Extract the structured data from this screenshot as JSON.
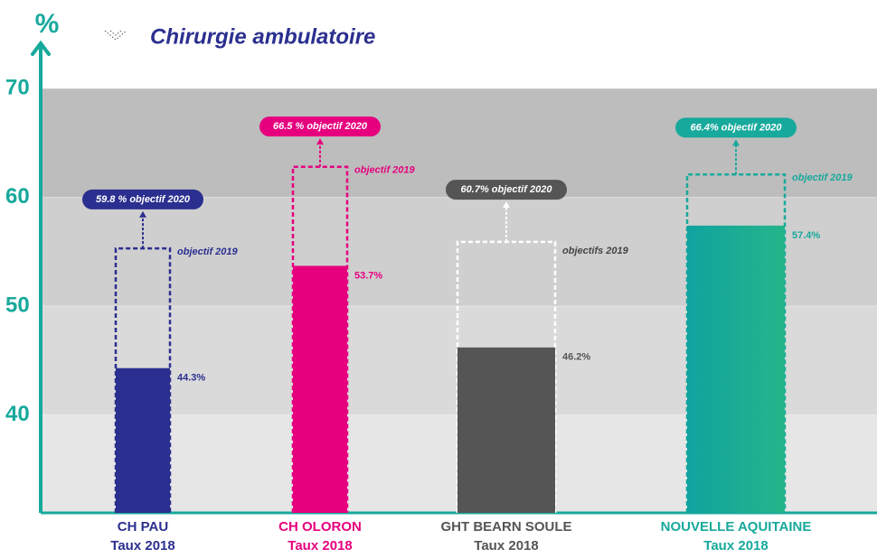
{
  "chart_data": {
    "type": "bar",
    "title": "Chirurgie ambulatoire",
    "y_label": "%",
    "categories": [
      [
        "CH PAU",
        "Taux  2018"
      ],
      [
        "CH OLORON",
        "Taux  2018"
      ],
      [
        "GHT BEARN SOULE",
        "Taux 2018"
      ],
      [
        "NOUVELLE AQUITAINE",
        "Taux 2018"
      ]
    ],
    "colors": [
      "#2b2f8f",
      "#e6007e",
      "#555555",
      "#17a99c"
    ],
    "series": [
      {
        "name": "Taux 2018",
        "values": [
          44.3,
          53.7,
          46.2,
          57.4
        ],
        "value_labels": [
          "44.3%",
          "53.7%",
          "46.2%",
          "57.4%"
        ]
      },
      {
        "name": "objectif 2019",
        "values": [
          55.3,
          62.8,
          55.9,
          62.1
        ],
        "value_labels": [
          "objectif 2019",
          "objectif 2019",
          "objectifs 2019",
          "objectif 2019"
        ]
      },
      {
        "name": "objectif 2020",
        "values": [
          59.8,
          66.5,
          60.7,
          66.4
        ],
        "value_labels": [
          "59.8 % objectif 2020",
          "66.5 % objectif 2020",
          "60.7% objectif 2020",
          "66.4% objectif 2020"
        ]
      }
    ],
    "ylim": [
      31,
      70
    ],
    "yticks": [
      40,
      50,
      60,
      70
    ]
  }
}
